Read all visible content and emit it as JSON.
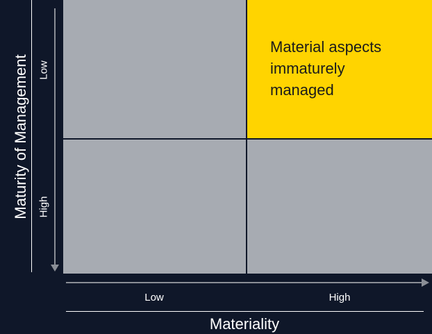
{
  "matrix": {
    "y_axis_title": "Maturity of Management",
    "x_axis_title": "Materiality",
    "y_ticks": {
      "top": "Low",
      "bottom": "High"
    },
    "x_ticks": {
      "left": "Low",
      "right": "High"
    },
    "quadrants": {
      "top_left": {
        "label": "",
        "color": "#a7abb2"
      },
      "top_right": {
        "label": "Material aspects\nimmaturely\nmanaged",
        "color": "#ffd400"
      },
      "bottom_left": {
        "label": "",
        "color": "#a7abb2"
      },
      "bottom_right": {
        "label": "",
        "color": "#a7abb2"
      }
    },
    "colors": {
      "background": "#0f1729",
      "highlight": "#ffd400",
      "quadrant": "#a7abb2",
      "axis_arrow": "#8a8e96",
      "text": "#ffffff"
    }
  }
}
